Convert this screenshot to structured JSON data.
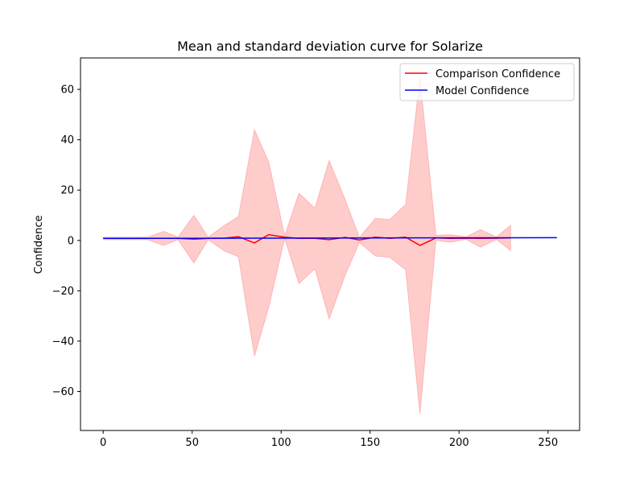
{
  "chart_data": {
    "type": "line",
    "title": "Mean and standard deviation curve for Solarize",
    "xlabel": "",
    "ylabel": "Confidence",
    "xlim": [
      -12.75,
      267.75
    ],
    "ylim": [
      -75.5,
      72.5
    ],
    "xticks": [
      0,
      50,
      100,
      150,
      200,
      250
    ],
    "yticks": [
      -60,
      -40,
      -20,
      0,
      20,
      40,
      60
    ],
    "xtick_labels": [
      "0",
      "50",
      "100",
      "150",
      "200",
      "250"
    ],
    "ytick_labels": [
      "−60",
      "−40",
      "−20",
      "0",
      "20",
      "40",
      "60"
    ],
    "grid": false,
    "legend_position": "top-right",
    "series": [
      {
        "name": "Comparison Confidence",
        "color": "#ff0000",
        "band_color": "#ff0000",
        "x": [
          0,
          8,
          17,
          25,
          34,
          42,
          51,
          59,
          68,
          76,
          85,
          93,
          102,
          110,
          119,
          127,
          136,
          144,
          153,
          161,
          170,
          178,
          187,
          195,
          204,
          212,
          221,
          229
        ],
        "mean": [
          0.8,
          0.8,
          0.8,
          0.8,
          0.8,
          0.8,
          0.5,
          0.8,
          0.9,
          1.5,
          -1.0,
          2.3,
          1.3,
          0.8,
          0.8,
          0.3,
          1.2,
          0.2,
          1.3,
          0.8,
          1.3,
          -2.0,
          1.0,
          0.8,
          0.9,
          0.8,
          0.9,
          1.0
        ],
        "std": [
          0.5,
          0.5,
          0.5,
          0.5,
          2.8,
          0.5,
          9.5,
          0.5,
          5.0,
          8.0,
          45.0,
          29.0,
          0.5,
          18.0,
          12.0,
          31.5,
          15.0,
          1.0,
          7.5,
          7.5,
          13.0,
          67.0,
          1.0,
          1.5,
          0.5,
          3.5,
          0.5,
          5.0
        ]
      },
      {
        "name": "Model Confidence",
        "color": "#0000ff",
        "x": [
          0,
          255
        ],
        "y": [
          0.8,
          1.1
        ]
      }
    ]
  }
}
